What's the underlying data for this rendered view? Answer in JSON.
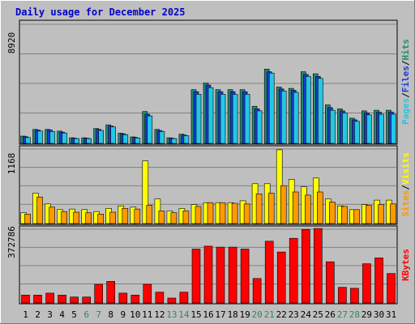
{
  "chart_data": {
    "type": "bar",
    "title": "Daily usage for December 2025",
    "categories": [
      "1",
      "2",
      "3",
      "4",
      "5",
      "6",
      "7",
      "8",
      "9",
      "10",
      "11",
      "12",
      "13",
      "14",
      "15",
      "16",
      "17",
      "18",
      "19",
      "20",
      "21",
      "22",
      "23",
      "24",
      "25",
      "26",
      "27",
      "28",
      "29",
      "30",
      "31"
    ],
    "weekend_days": [
      "6",
      "7",
      "13",
      "14",
      "20",
      "21",
      "27",
      "28"
    ],
    "panels": [
      {
        "id": "traffic",
        "ymax_label": "8920",
        "ymax": 8920,
        "legend": [
          "Pages",
          "/",
          "Files",
          "/",
          "Hits"
        ],
        "series": [
          {
            "name": "Hits",
            "color": "#1e8c6e",
            "values": [
              550,
              1050,
              1050,
              920,
              420,
              420,
              1120,
              1400,
              770,
              490,
              2400,
              1050,
              420,
              690,
              4050,
              4550,
              4050,
              4050,
              4050,
              2800,
              5600,
              4250,
              4150,
              5400,
              5250,
              2900,
              2600,
              1900,
              2450,
              2500,
              2500
            ]
          },
          {
            "name": "Files",
            "color": "#1a3cd8",
            "values": [
              500,
              1000,
              1000,
              850,
              390,
              390,
              1050,
              1300,
              720,
              450,
              2200,
              970,
              390,
              630,
              3900,
              4400,
              3900,
              3900,
              3900,
              2600,
              5400,
              4100,
              4000,
              5200,
              5050,
              2700,
              2450,
              1780,
              2300,
              2350,
              2350
            ]
          },
          {
            "name": "Pages",
            "color": "#22c8e6",
            "values": [
              440,
              930,
              900,
              780,
              360,
              360,
              980,
              1240,
              660,
              410,
              2070,
              900,
              360,
              580,
              3700,
              4200,
              3700,
              3700,
              3700,
              2450,
              5300,
              3950,
              3850,
              5050,
              4900,
              2500,
              2290,
              1660,
              2150,
              2200,
              2200
            ]
          }
        ]
      },
      {
        "id": "visits",
        "ymax_label": "1168",
        "ymax": 1168,
        "legend": [
          "Sites",
          "/",
          "Visits"
        ],
        "series": [
          {
            "name": "Visits",
            "color": "#ffff00",
            "values": [
              170,
              480,
              310,
              220,
              230,
              220,
              190,
              240,
              280,
              260,
              990,
              390,
              200,
              240,
              300,
              330,
              330,
              330,
              360,
              630,
              630,
              1168,
              700,
              580,
              720,
              390,
              280,
              220,
              300,
              370,
              370
            ]
          },
          {
            "name": "Sites",
            "color": "#ff9900",
            "values": [
              150,
              420,
              260,
              190,
              180,
              170,
              150,
              180,
              240,
              230,
              290,
              200,
              170,
              200,
              270,
              330,
              330,
              320,
              310,
              470,
              480,
              600,
              500,
              450,
              500,
              340,
              270,
              220,
              290,
              300,
              310
            ]
          }
        ]
      },
      {
        "id": "kbytes",
        "ymax_label": "372786",
        "ymax": 372786,
        "legend": [
          "KBytes"
        ],
        "series": [
          {
            "name": "KBytes",
            "color": "#ff0000",
            "values": [
              40000,
              40000,
              50000,
              40000,
              30000,
              30000,
              95000,
              110000,
              50000,
              40000,
              95000,
              55000,
              25000,
              55000,
              275000,
              290000,
              285000,
              285000,
              275000,
              125000,
              315000,
              260000,
              330000,
              375000,
              380000,
              210000,
              80000,
              75000,
              200000,
              230000,
              150000
            ]
          }
        ]
      }
    ]
  }
}
